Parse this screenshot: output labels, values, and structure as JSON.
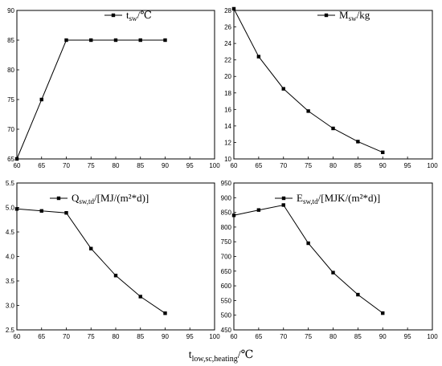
{
  "x_axis_title": {
    "base": "t",
    "sub": "low,sc,heating",
    "unit": "/℃"
  },
  "chart_data": [
    {
      "type": "line",
      "legend": {
        "base": "t",
        "sub": "sw",
        "unit": "/℃"
      },
      "x": [
        60,
        65,
        70,
        75,
        80,
        85,
        90
      ],
      "y": [
        65,
        75,
        85,
        85,
        85,
        85,
        85
      ],
      "xlim": [
        60,
        100
      ],
      "ylim": [
        65,
        90
      ],
      "xticks": [
        60,
        65,
        70,
        75,
        80,
        85,
        90,
        95,
        100
      ],
      "yticks": [
        65,
        70,
        75,
        80,
        85,
        90
      ],
      "tick_decimals": 0,
      "legend_position": "top-right"
    },
    {
      "type": "line",
      "legend": {
        "base": "M",
        "sub": "sw",
        "unit": "/kg"
      },
      "x": [
        60,
        65,
        70,
        75,
        80,
        85,
        90
      ],
      "y": [
        28.2,
        22.4,
        18.5,
        15.8,
        13.7,
        12.1,
        10.8
      ],
      "xlim": [
        60,
        100
      ],
      "ylim": [
        10,
        28
      ],
      "xticks": [
        60,
        65,
        70,
        75,
        80,
        85,
        90,
        95,
        100
      ],
      "yticks": [
        10,
        12,
        14,
        16,
        18,
        20,
        22,
        24,
        26,
        28
      ],
      "tick_decimals": 0,
      "legend_position": "top-right"
    },
    {
      "type": "line",
      "legend": {
        "base": "Q",
        "sub": "sw,td",
        "unit": "/[MJ/(m²*d)]"
      },
      "x": [
        60,
        65,
        70,
        75,
        80,
        85,
        90
      ],
      "y": [
        4.97,
        4.93,
        4.89,
        4.16,
        3.61,
        3.18,
        2.84
      ],
      "xlim": [
        60,
        100
      ],
      "ylim": [
        2.5,
        5.5
      ],
      "xticks": [
        60,
        65,
        70,
        75,
        80,
        85,
        90,
        95,
        100
      ],
      "yticks": [
        2.5,
        3.0,
        3.5,
        4.0,
        4.5,
        5.0,
        5.5
      ],
      "tick_decimals": 1,
      "legend_position": "top-right"
    },
    {
      "type": "line",
      "legend": {
        "base": "E",
        "sub": "sw,td",
        "unit": "/[MJK/(m²*d)]"
      },
      "x": [
        60,
        65,
        70,
        75,
        80,
        85,
        90
      ],
      "y": [
        840,
        858,
        875,
        745,
        645,
        570,
        507
      ],
      "xlim": [
        60,
        100
      ],
      "ylim": [
        450,
        950
      ],
      "xticks": [
        60,
        65,
        70,
        75,
        80,
        85,
        90,
        95,
        100
      ],
      "yticks": [
        450,
        500,
        550,
        600,
        650,
        700,
        750,
        800,
        850,
        900,
        950
      ],
      "tick_decimals": 0,
      "legend_position": "top-right"
    }
  ]
}
